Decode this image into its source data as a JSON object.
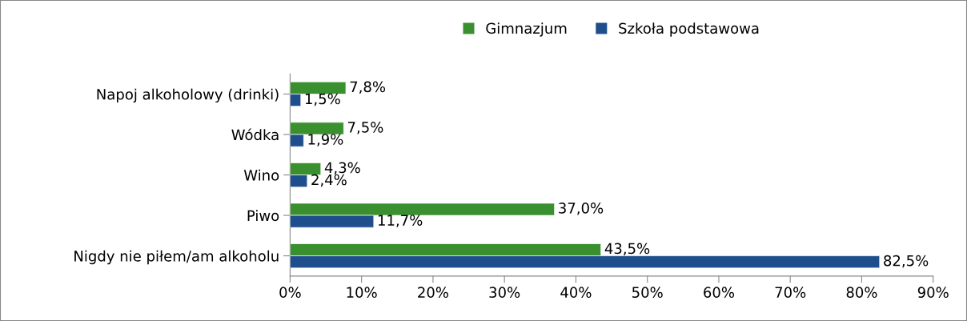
{
  "chart_data": {
    "type": "bar",
    "orientation": "horizontal",
    "categories": [
      "Napoj alkoholowy (drinki)",
      "Wódka",
      "Wino",
      "Piwo",
      "Nigdy nie piłem/am alkoholu"
    ],
    "series": [
      {
        "name": "Gimnazjum",
        "color": "#3a8f2f",
        "values": [
          7.8,
          7.5,
          4.3,
          37.0,
          43.5
        ],
        "value_labels": [
          "7,8%",
          "7,5%",
          "4,3%",
          "37,0%",
          "43,5%"
        ]
      },
      {
        "name": "Szkoła podstawowa",
        "color": "#1f4e8c",
        "values": [
          1.5,
          1.9,
          2.4,
          11.7,
          82.5
        ],
        "value_labels": [
          "1,5%",
          "1,9%",
          "2,4%",
          "11,7%",
          "82,5%"
        ]
      }
    ],
    "xlim": [
      0,
      90
    ],
    "xticks": [
      {
        "value": 0,
        "label": "0%"
      },
      {
        "value": 10,
        "label": "10%"
      },
      {
        "value": 20,
        "label": "20%"
      },
      {
        "value": 30,
        "label": "30%"
      },
      {
        "value": 40,
        "label": "40%"
      },
      {
        "value": 50,
        "label": "50%"
      },
      {
        "value": 60,
        "label": "60%"
      },
      {
        "value": 70,
        "label": "70%"
      },
      {
        "value": 80,
        "label": "80%"
      },
      {
        "value": 90,
        "label": "90%"
      }
    ],
    "grid": false,
    "legend": "top"
  }
}
